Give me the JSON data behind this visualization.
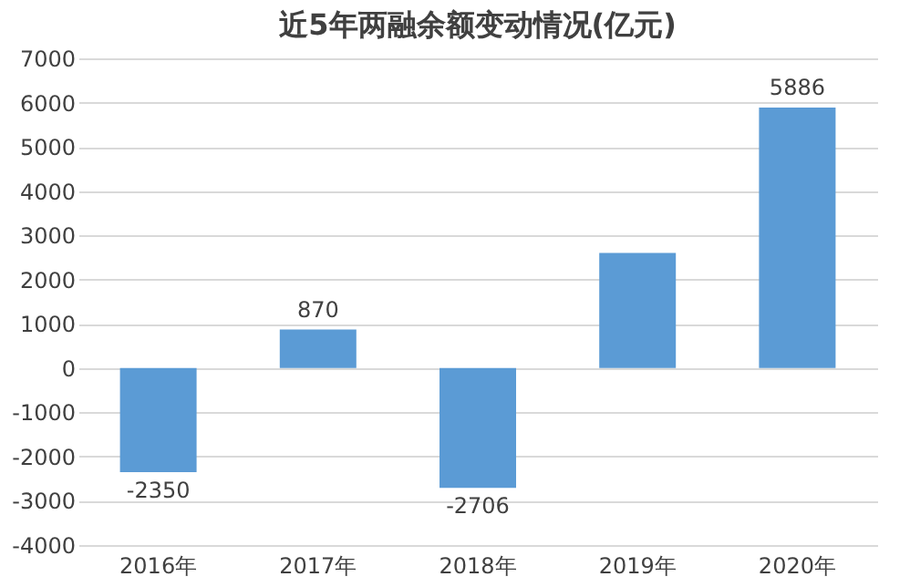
{
  "chart_data": {
    "type": "bar",
    "title": "近5年两融余额变动情况(亿元)",
    "categories": [
      "2016年",
      "2017年",
      "2018年",
      "2019年",
      "2020年"
    ],
    "values": [
      -2350,
      870,
      -2706,
      2600,
      5886
    ],
    "value_labels": [
      "-2350",
      "870",
      "-2706",
      null,
      "5886"
    ],
    "color": "#5b9bd5",
    "ylim": [
      -4000,
      7000
    ],
    "yticks": [
      -4000,
      -3000,
      -2000,
      -1000,
      0,
      1000,
      2000,
      3000,
      4000,
      5000,
      6000,
      7000
    ],
    "grid": "y"
  }
}
